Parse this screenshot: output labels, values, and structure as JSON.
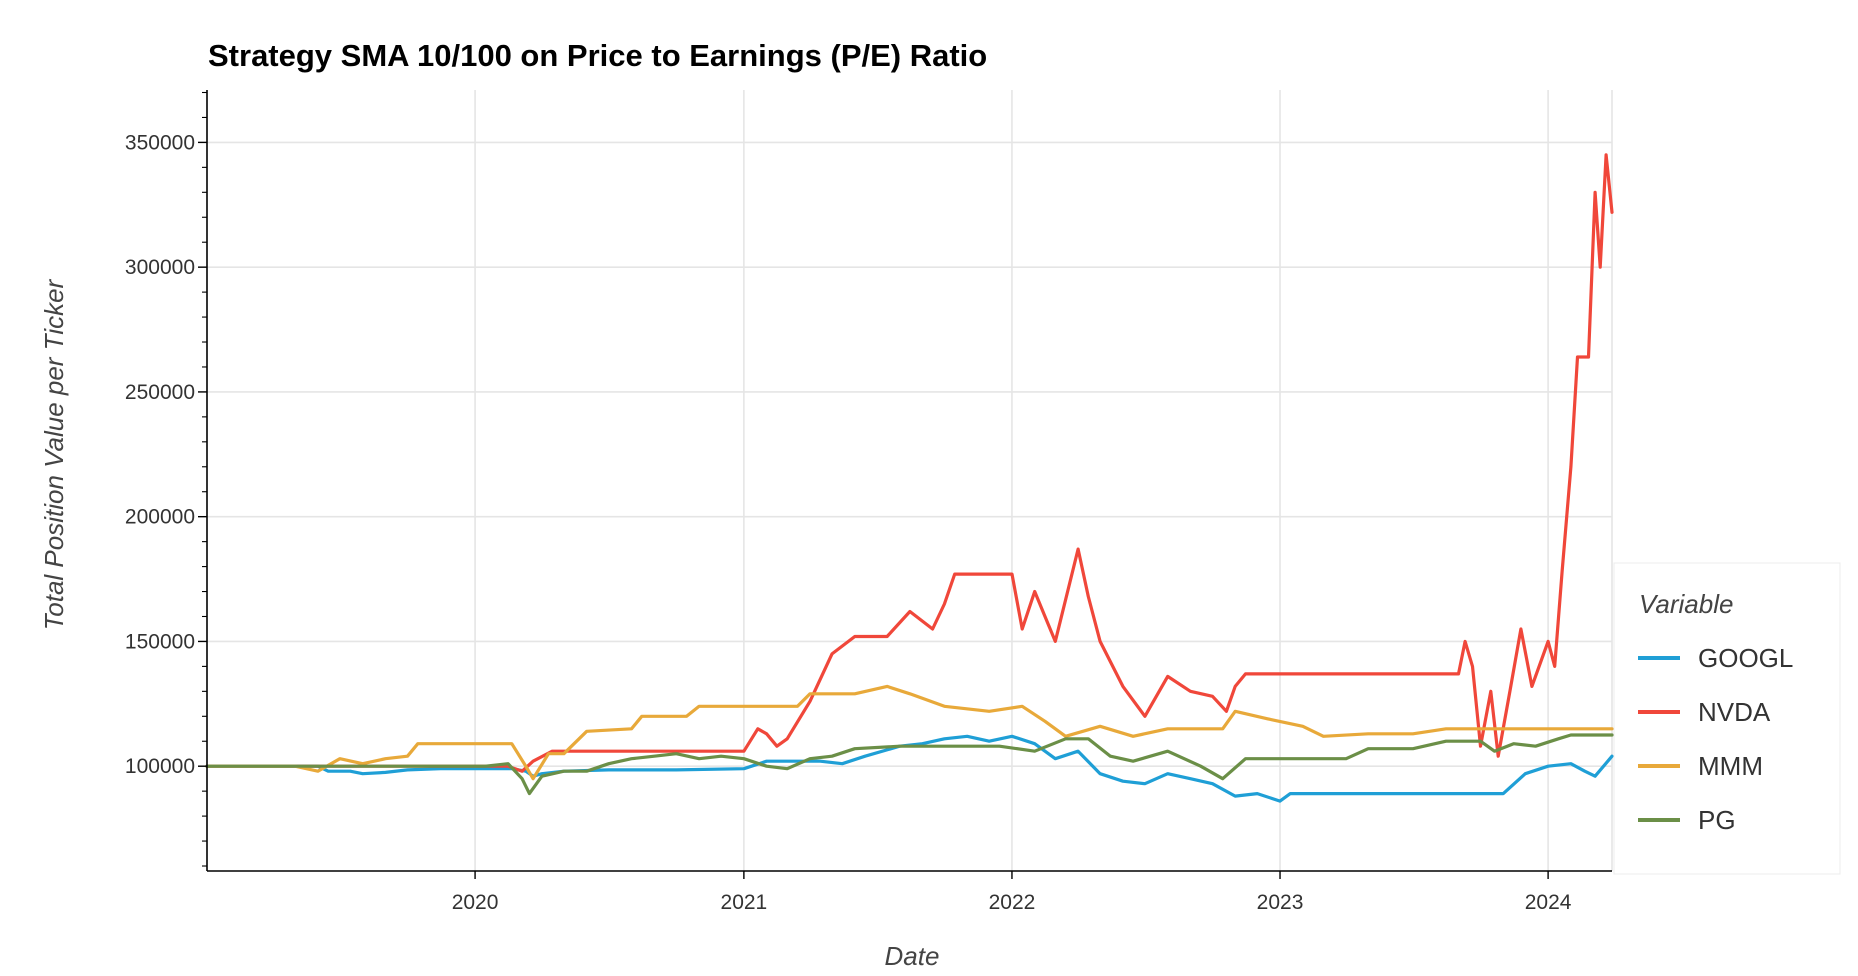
{
  "chart_data": {
    "type": "line",
    "title": "Strategy SMA 10/100 on Price to Earnings (P/E) Ratio",
    "xlabel": "Date",
    "ylabel": "Total Position Value per Ticker",
    "x_ticks": [
      "2020",
      "2021",
      "2022",
      "2023",
      "2024"
    ],
    "y_ticks": [
      100000,
      150000,
      200000,
      250000,
      300000,
      350000
    ],
    "xlim": [
      "2019-01-01",
      "2024-03-28"
    ],
    "ylim": [
      58000,
      371000
    ],
    "grid": true,
    "legend": {
      "title": "Variable",
      "position": "right"
    },
    "series": [
      {
        "name": "GOOGL",
        "color": "#1f9fd6",
        "points": [
          [
            "2019-01-01",
            100000
          ],
          [
            "2019-06-01",
            100000
          ],
          [
            "2019-06-15",
            98000
          ],
          [
            "2019-07-15",
            98000
          ],
          [
            "2019-08-01",
            97000
          ],
          [
            "2019-09-01",
            97500
          ],
          [
            "2019-10-01",
            98500
          ],
          [
            "2019-11-15",
            99000
          ],
          [
            "2020-01-01",
            99000
          ],
          [
            "2020-02-20",
            99000
          ],
          [
            "2020-03-10",
            98000
          ],
          [
            "2020-03-20",
            96000
          ],
          [
            "2020-04-01",
            97000
          ],
          [
            "2020-05-01",
            98000
          ],
          [
            "2020-07-01",
            98500
          ],
          [
            "2020-10-01",
            98500
          ],
          [
            "2021-01-01",
            99000
          ],
          [
            "2021-02-01",
            102000
          ],
          [
            "2021-03-01",
            102000
          ],
          [
            "2021-04-15",
            102000
          ],
          [
            "2021-05-15",
            101000
          ],
          [
            "2021-06-15",
            104000
          ],
          [
            "2021-08-01",
            108000
          ],
          [
            "2021-09-01",
            109000
          ],
          [
            "2021-10-01",
            111000
          ],
          [
            "2021-11-01",
            112000
          ],
          [
            "2021-12-01",
            110000
          ],
          [
            "2022-01-01",
            112000
          ],
          [
            "2022-02-01",
            109000
          ],
          [
            "2022-03-01",
            103000
          ],
          [
            "2022-04-01",
            106000
          ],
          [
            "2022-05-01",
            97000
          ],
          [
            "2022-06-01",
            94000
          ],
          [
            "2022-07-01",
            93000
          ],
          [
            "2022-08-01",
            97000
          ],
          [
            "2022-09-01",
            95000
          ],
          [
            "2022-10-01",
            93000
          ],
          [
            "2022-11-01",
            88000
          ],
          [
            "2022-12-01",
            89000
          ],
          [
            "2023-01-01",
            86000
          ],
          [
            "2023-01-15",
            89000
          ],
          [
            "2023-04-01",
            89000
          ],
          [
            "2023-07-01",
            89000
          ],
          [
            "2023-10-01",
            89000
          ],
          [
            "2023-11-01",
            89000
          ],
          [
            "2023-12-01",
            97000
          ],
          [
            "2024-01-01",
            100000
          ],
          [
            "2024-02-01",
            101000
          ],
          [
            "2024-02-20",
            98000
          ],
          [
            "2024-03-05",
            96000
          ],
          [
            "2024-03-28",
            104000
          ]
        ]
      },
      {
        "name": "NVDA",
        "color": "#f0473a",
        "points": [
          [
            "2019-01-01",
            100000
          ],
          [
            "2019-10-01",
            100000
          ],
          [
            "2020-02-15",
            100000
          ],
          [
            "2020-03-05",
            98000
          ],
          [
            "2020-03-20",
            102000
          ],
          [
            "2020-04-15",
            106000
          ],
          [
            "2020-07-01",
            106000
          ],
          [
            "2020-10-01",
            106000
          ],
          [
            "2021-01-01",
            106000
          ],
          [
            "2021-01-20",
            115000
          ],
          [
            "2021-02-01",
            113000
          ],
          [
            "2021-02-15",
            108000
          ],
          [
            "2021-03-01",
            111000
          ],
          [
            "2021-04-01",
            126000
          ],
          [
            "2021-05-01",
            145000
          ],
          [
            "2021-06-01",
            152000
          ],
          [
            "2021-07-15",
            152000
          ],
          [
            "2021-08-15",
            162000
          ],
          [
            "2021-09-15",
            155000
          ],
          [
            "2021-10-01",
            165000
          ],
          [
            "2021-10-15",
            177000
          ],
          [
            "2021-12-15",
            177000
          ],
          [
            "2022-01-01",
            177000
          ],
          [
            "2022-01-15",
            155000
          ],
          [
            "2022-02-01",
            170000
          ],
          [
            "2022-02-15",
            160000
          ],
          [
            "2022-03-01",
            150000
          ],
          [
            "2022-04-01",
            187000
          ],
          [
            "2022-04-15",
            168000
          ],
          [
            "2022-05-01",
            150000
          ],
          [
            "2022-06-01",
            132000
          ],
          [
            "2022-07-01",
            120000
          ],
          [
            "2022-08-01",
            136000
          ],
          [
            "2022-09-01",
            130000
          ],
          [
            "2022-10-01",
            128000
          ],
          [
            "2022-10-20",
            122000
          ],
          [
            "2022-11-01",
            132000
          ],
          [
            "2022-11-15",
            137000
          ],
          [
            "2023-03-01",
            137000
          ],
          [
            "2023-06-01",
            137000
          ],
          [
            "2023-09-01",
            137000
          ],
          [
            "2023-09-10",
            150000
          ],
          [
            "2023-09-20",
            140000
          ],
          [
            "2023-10-01",
            108000
          ],
          [
            "2023-10-15",
            130000
          ],
          [
            "2023-10-25",
            104000
          ],
          [
            "2023-11-10",
            130000
          ],
          [
            "2023-11-25",
            155000
          ],
          [
            "2023-12-10",
            132000
          ],
          [
            "2024-01-01",
            150000
          ],
          [
            "2024-01-10",
            140000
          ],
          [
            "2024-01-20",
            178000
          ],
          [
            "2024-02-01",
            220000
          ],
          [
            "2024-02-10",
            264000
          ],
          [
            "2024-02-25",
            264000
          ],
          [
            "2024-03-05",
            330000
          ],
          [
            "2024-03-12",
            300000
          ],
          [
            "2024-03-20",
            345000
          ],
          [
            "2024-03-28",
            322000
          ]
        ]
      },
      {
        "name": "MMM",
        "color": "#e8a93a",
        "points": [
          [
            "2019-01-01",
            100000
          ],
          [
            "2019-05-01",
            100000
          ],
          [
            "2019-06-01",
            98000
          ],
          [
            "2019-07-01",
            103000
          ],
          [
            "2019-08-01",
            101000
          ],
          [
            "2019-09-01",
            103000
          ],
          [
            "2019-10-01",
            104000
          ],
          [
            "2019-10-15",
            109000
          ],
          [
            "2020-01-01",
            109000
          ],
          [
            "2020-02-20",
            109000
          ],
          [
            "2020-03-10",
            100000
          ],
          [
            "2020-03-20",
            95000
          ],
          [
            "2020-04-10",
            105000
          ],
          [
            "2020-05-01",
            105000
          ],
          [
            "2020-06-01",
            114000
          ],
          [
            "2020-08-01",
            115000
          ],
          [
            "2020-08-15",
            120000
          ],
          [
            "2020-10-15",
            120000
          ],
          [
            "2020-11-01",
            124000
          ],
          [
            "2021-01-01",
            124000
          ],
          [
            "2021-03-15",
            124000
          ],
          [
            "2021-04-01",
            129000
          ],
          [
            "2021-06-01",
            129000
          ],
          [
            "2021-07-15",
            132000
          ],
          [
            "2021-08-15",
            129000
          ],
          [
            "2021-10-01",
            124000
          ],
          [
            "2021-12-01",
            122000
          ],
          [
            "2022-01-15",
            124000
          ],
          [
            "2022-02-15",
            118000
          ],
          [
            "2022-03-15",
            112000
          ],
          [
            "2022-05-01",
            116000
          ],
          [
            "2022-06-15",
            112000
          ],
          [
            "2022-08-01",
            115000
          ],
          [
            "2022-10-15",
            115000
          ],
          [
            "2022-11-01",
            122000
          ],
          [
            "2022-12-15",
            119000
          ],
          [
            "2023-02-01",
            116000
          ],
          [
            "2023-03-01",
            112000
          ],
          [
            "2023-05-01",
            113000
          ],
          [
            "2023-07-01",
            113000
          ],
          [
            "2023-08-15",
            115000
          ],
          [
            "2023-10-15",
            115000
          ],
          [
            "2024-01-01",
            115000
          ],
          [
            "2024-03-28",
            115000
          ]
        ]
      },
      {
        "name": "PG",
        "color": "#6b8f47",
        "points": [
          [
            "2019-01-01",
            100000
          ],
          [
            "2019-06-01",
            100000
          ],
          [
            "2019-09-01",
            100000
          ],
          [
            "2019-12-01",
            100000
          ],
          [
            "2020-01-15",
            100000
          ],
          [
            "2020-02-15",
            101000
          ],
          [
            "2020-03-05",
            95000
          ],
          [
            "2020-03-15",
            89000
          ],
          [
            "2020-04-01",
            96000
          ],
          [
            "2020-05-01",
            98000
          ],
          [
            "2020-06-01",
            98000
          ],
          [
            "2020-07-01",
            101000
          ],
          [
            "2020-08-01",
            103000
          ],
          [
            "2020-09-01",
            104000
          ],
          [
            "2020-10-01",
            105000
          ],
          [
            "2020-11-01",
            103000
          ],
          [
            "2020-12-01",
            104000
          ],
          [
            "2021-01-01",
            103000
          ],
          [
            "2021-02-01",
            100000
          ],
          [
            "2021-03-01",
            99000
          ],
          [
            "2021-04-01",
            103000
          ],
          [
            "2021-05-01",
            104000
          ],
          [
            "2021-06-01",
            107000
          ],
          [
            "2021-08-01",
            108000
          ],
          [
            "2021-10-01",
            108000
          ],
          [
            "2021-12-15",
            108000
          ],
          [
            "2022-02-01",
            106000
          ],
          [
            "2022-03-15",
            111000
          ],
          [
            "2022-04-15",
            111000
          ],
          [
            "2022-05-15",
            104000
          ],
          [
            "2022-06-15",
            102000
          ],
          [
            "2022-08-01",
            106000
          ],
          [
            "2022-09-15",
            100000
          ],
          [
            "2022-10-15",
            95000
          ],
          [
            "2022-11-15",
            103000
          ],
          [
            "2023-02-01",
            103000
          ],
          [
            "2023-04-01",
            103000
          ],
          [
            "2023-05-01",
            107000
          ],
          [
            "2023-07-01",
            107000
          ],
          [
            "2023-08-15",
            110000
          ],
          [
            "2023-10-01",
            110000
          ],
          [
            "2023-10-20",
            106000
          ],
          [
            "2023-11-15",
            109000
          ],
          [
            "2023-12-15",
            108000
          ],
          [
            "2024-01-15",
            111000
          ],
          [
            "2024-02-01",
            112500
          ],
          [
            "2024-03-28",
            112500
          ]
        ]
      }
    ]
  }
}
